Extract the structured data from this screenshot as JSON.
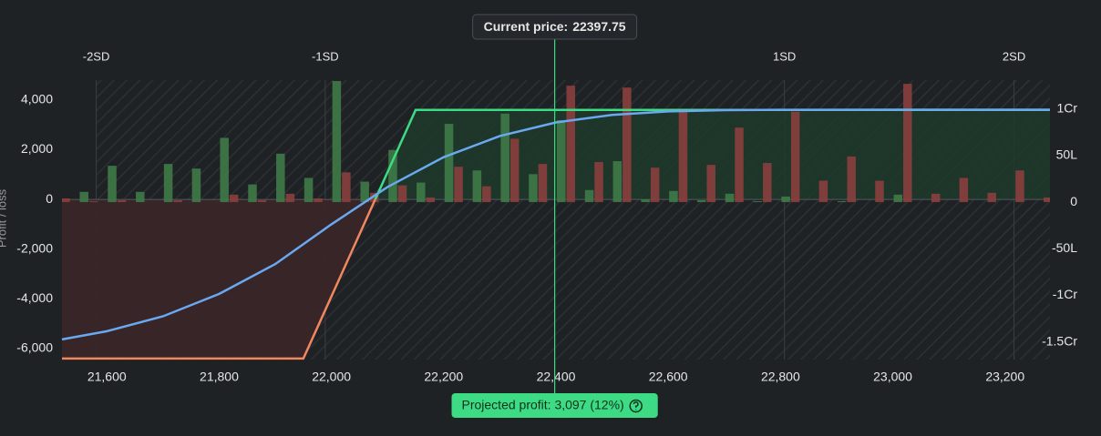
{
  "chart_data": {
    "type": "payoff",
    "y_axis_label": "Profit / loss",
    "xlim": [
      21520,
      23280
    ],
    "ylim": [
      -6440,
      4800
    ],
    "y2lim": [
      -169,
      131
    ],
    "xticks": [
      {
        "value": 21600,
        "label": "21,600"
      },
      {
        "value": 21800,
        "label": "21,800"
      },
      {
        "value": 22000,
        "label": "22,000"
      },
      {
        "value": 22200,
        "label": "22,200"
      },
      {
        "value": 22400,
        "label": "22,400"
      },
      {
        "value": 22600,
        "label": "22,600"
      },
      {
        "value": 22800,
        "label": "22,800"
      },
      {
        "value": 23000,
        "label": "23,000"
      },
      {
        "value": 23200,
        "label": "23,200"
      }
    ],
    "yticks": [
      {
        "value": 4000,
        "label": "4,000"
      },
      {
        "value": 2000,
        "label": "2,000"
      },
      0,
      {
        "value": -2000,
        "label": "-2,000"
      },
      {
        "value": -4000,
        "label": "-4,000"
      },
      {
        "value": -6000,
        "label": "-6,000"
      }
    ],
    "y2ticks": [
      {
        "value": 100,
        "label": "1Cr"
      },
      {
        "value": 50,
        "label": "50L"
      },
      0,
      {
        "value": -50,
        "label": "-50L"
      },
      {
        "value": -100,
        "label": "-1Cr"
      },
      {
        "value": -150,
        "label": "-1.5Cr"
      }
    ],
    "sd_lines": [
      {
        "label": "-2SD",
        "x": 21581
      },
      {
        "label": "-1SD",
        "x": 21989
      },
      {
        "label": "1SD",
        "x": 22807
      },
      {
        "label": "2SD",
        "x": 23216
      }
    ],
    "current_price": {
      "label": "Current price:",
      "value": 22397.75,
      "color": "#3ddc84"
    },
    "projected_profit": "Projected profit: 3,097 (12%)",
    "payoff": {
      "x": [
        21520,
        21950,
        22150,
        23280
      ],
      "values": [
        -6400,
        -6400,
        3600,
        3600
      ],
      "profit_color": "#3ddc84",
      "loss_color": "#f0875f",
      "profit_fill": "#1f3a2a",
      "loss_fill": "#3a2628"
    },
    "t0_curve": {
      "color": "#6aa8f0",
      "x": [
        21520,
        21600,
        21700,
        21800,
        21900,
        22000,
        22100,
        22200,
        22300,
        22400,
        22500,
        22600,
        22700,
        22800,
        23000,
        23280
      ],
      "values": [
        -5630,
        -5300,
        -4700,
        -3800,
        -2600,
        -1000,
        500,
        1700,
        2550,
        3097,
        3400,
        3540,
        3590,
        3605,
        3610,
        3611
      ]
    },
    "oi_bars": {
      "strikes": [
        21500,
        21550,
        21600,
        21650,
        21700,
        21750,
        21800,
        21850,
        21900,
        21950,
        22000,
        22050,
        22100,
        22150,
        22200,
        22250,
        22300,
        22350,
        22400,
        22450,
        22500,
        22550,
        22600,
        22650,
        22700,
        22750,
        22800,
        22850,
        22900,
        22950,
        23000,
        23050,
        23100,
        23150,
        23200,
        23250
      ],
      "series": [
        {
          "color": "#3f7a48",
          "values": [
            0,
            11,
            39,
            11,
            41,
            36,
            69,
            19,
            52,
            26,
            130,
            22,
            56,
            21,
            84,
            34,
            95,
            30,
            88,
            13,
            44,
            3,
            12,
            2,
            9,
            1,
            6,
            0,
            1,
            0,
            8,
            0,
            0,
            0,
            0,
            0
          ]
        },
        {
          "color": "#8a3f3d",
          "values": [
            4,
            1,
            2,
            0,
            2,
            0,
            8,
            2,
            9,
            4,
            32,
            10,
            18,
            5,
            38,
            17,
            68,
            41,
            125,
            43,
            123,
            37,
            97,
            40,
            80,
            42,
            97,
            23,
            49,
            23,
            127,
            9,
            26,
            10,
            34,
            5
          ]
        }
      ]
    }
  }
}
